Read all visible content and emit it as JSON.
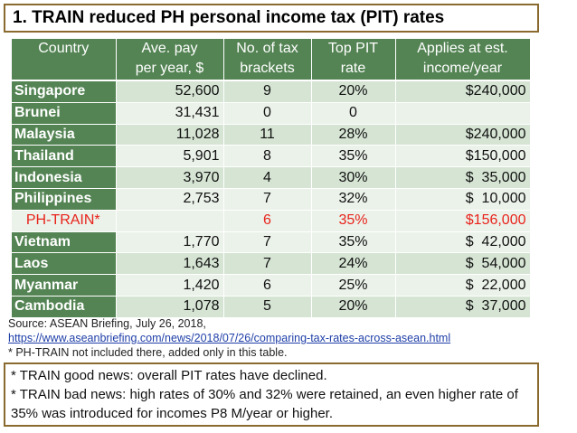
{
  "title": "1. TRAIN reduced PH personal income tax (PIT) rates",
  "table": {
    "headers": [
      [
        "Country"
      ],
      [
        "Ave. pay",
        "per year, $"
      ],
      [
        "No. of tax",
        "brackets"
      ],
      [
        "Top PIT",
        "rate"
      ],
      [
        "Applies at est.",
        "income/year"
      ]
    ],
    "rows": [
      {
        "country": "Singapore",
        "pay": "52,600",
        "brackets": "9",
        "rate": "20%",
        "applies": "$240,000"
      },
      {
        "country": "Brunei",
        "pay": "31,431",
        "brackets": "0",
        "rate": "0",
        "applies": ""
      },
      {
        "country": "Malaysia",
        "pay": "11,028",
        "brackets": "11",
        "rate": "28%",
        "applies": "$240,000"
      },
      {
        "country": "Thailand",
        "pay": "5,901",
        "brackets": "8",
        "rate": "35%",
        "applies": "$150,000"
      },
      {
        "country": "Indonesia",
        "pay": "3,970",
        "brackets": "4",
        "rate": "30%",
        "applies": "$  35,000"
      },
      {
        "country": "Philippines",
        "pay": "2,753",
        "brackets": "7",
        "rate": "32%",
        "applies": "$  10,000"
      },
      {
        "country": "PH-TRAIN*",
        "pay": "",
        "brackets": "6",
        "rate": "35%",
        "applies": "$156,000",
        "highlight": true
      },
      {
        "country": "Vietnam",
        "pay": "1,770",
        "brackets": "7",
        "rate": "35%",
        "applies": "$  42,000"
      },
      {
        "country": "Laos",
        "pay": "1,643",
        "brackets": "7",
        "rate": "24%",
        "applies": "$  54,000"
      },
      {
        "country": "Myanmar",
        "pay": "1,420",
        "brackets": "6",
        "rate": "25%",
        "applies": "$  22,000"
      },
      {
        "country": "Cambodia",
        "pay": "1,078",
        "brackets": "5",
        "rate": "20%",
        "applies": "$  37,000"
      }
    ]
  },
  "source": {
    "line1": "Source: ASEAN Briefing, July 26, 2018,",
    "link": "https://www.aseanbriefing.com/news/2018/07/26/comparing-tax-rates-across-asean.html",
    "line3": "* PH-TRAIN not included there, added only in this table."
  },
  "notes": {
    "line1": "* TRAIN good news: overall PIT rates have declined.",
    "line2": "* TRAIN bad news: high rates of 30% and 32% were retained, an even higher rate of",
    "line3": "35% was introduced for incomes P8 M/year or higher."
  },
  "colors": {
    "header_green": "#548454",
    "row_light": "#ebf2ea",
    "row_mid": "#d5e4d3",
    "highlight_red": "#e8231b",
    "box_border": "#8a6a2e"
  }
}
